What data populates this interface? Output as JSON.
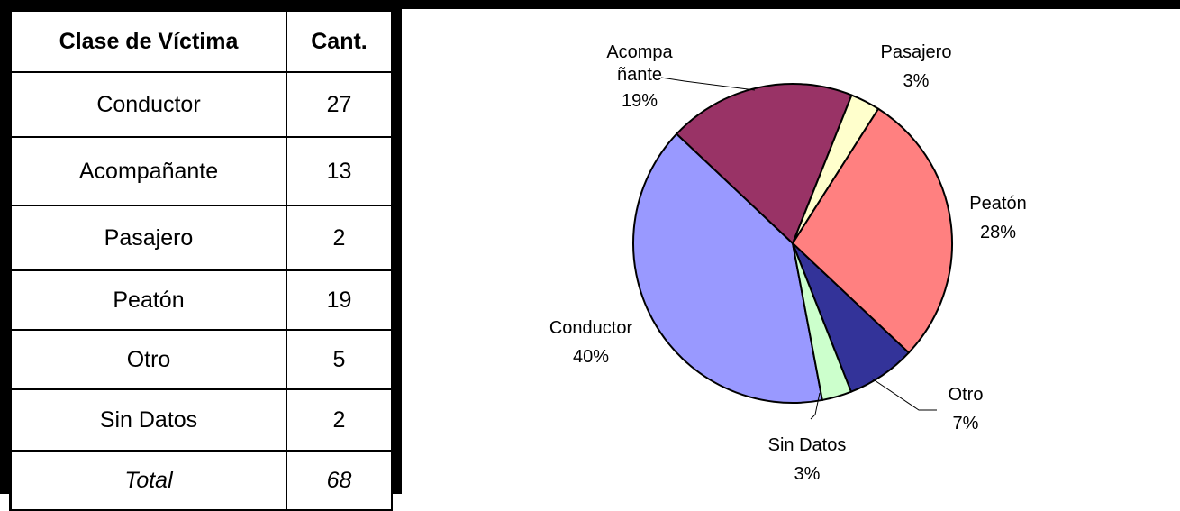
{
  "table": {
    "header": [
      "Clase de Víctima",
      "Cant."
    ],
    "rows": [
      [
        "Conductor",
        27
      ],
      [
        "Acompañante",
        13
      ],
      [
        "Pasajero",
        2
      ],
      [
        "Peatón",
        19
      ],
      [
        "Otro",
        5
      ],
      [
        "Sin Datos",
        2
      ]
    ],
    "total": [
      "Total",
      68
    ]
  },
  "chart_data": {
    "type": "pie",
    "categories": [
      "Conductor",
      "Acompañante",
      "Pasajero",
      "Peatón",
      "Otro",
      "Sin Datos"
    ],
    "values": [
      40,
      19,
      3,
      28,
      7,
      3
    ],
    "value_labels": [
      "40%",
      "19%",
      "3%",
      "28%",
      "7%",
      "3%"
    ],
    "colors": [
      "#9999ff",
      "#993366",
      "#ffffcc",
      "#ff8080",
      "#333399",
      "#ccffcc"
    ]
  }
}
